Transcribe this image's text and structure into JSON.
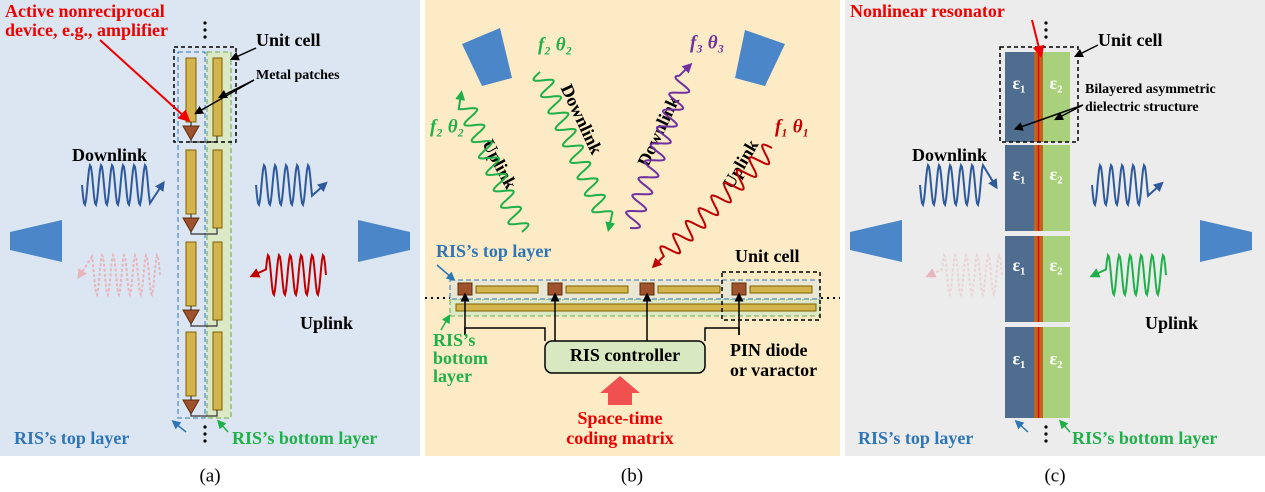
{
  "panel_a": {
    "caption": "(a)",
    "device_label": [
      "Active nonreciprocal",
      "device, e.g., amplifier"
    ],
    "unit_cell": "Unit cell",
    "metal_patches": "Metal patches",
    "downlink": "Downlink",
    "uplink": "Uplink",
    "top_layer": "RIS’s top layer",
    "bottom_layer": "RIS’s bottom layer"
  },
  "panel_b": {
    "caption": "(b)",
    "beam_labels": [
      "f₂ θ₂",
      "f₂ θ₂",
      "f₃ θ₃",
      "f₁ θ₁"
    ],
    "link_labels": [
      "Uplink",
      "Downlink",
      "Downlink",
      "Uplink"
    ],
    "top_layer": "RIS’s top layer",
    "bottom_layer": [
      "RIS’s",
      "bottom",
      "layer"
    ],
    "unit_cell": "Unit cell",
    "controller": "RIS controller",
    "element": [
      "PIN diode",
      "or varactor"
    ],
    "coding": [
      "Space-time",
      "coding matrix"
    ]
  },
  "panel_c": {
    "caption": "(c)",
    "resonator": "Nonlinear  resonator",
    "unit_cell": "Unit cell",
    "structure": [
      "Bilayered asymmetric",
      "dielectric  structure"
    ],
    "downlink": "Downlink",
    "uplink": "Uplink",
    "cells": [
      [
        "ε₁",
        "ε₂"
      ],
      [
        "ε₁",
        "ε₂"
      ],
      [
        "ε₁",
        "ε₂"
      ],
      [
        "ε₁",
        "ε₂"
      ]
    ],
    "top_layer": "RIS’s top layer",
    "bottom_layer": "RIS’s bottom layer"
  }
}
